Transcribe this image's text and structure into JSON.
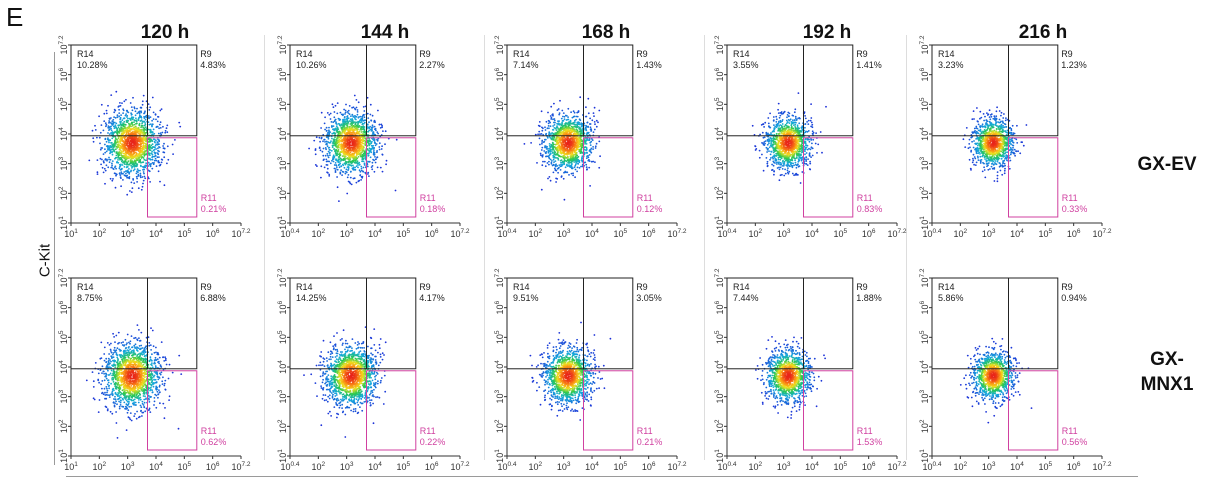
{
  "panel_letter": "E",
  "y_axis_label": "C-Kit",
  "columns": [
    "120 h",
    "144 h",
    "168 h",
    "192 h",
    "216 h"
  ],
  "rows": [
    {
      "label_line1": "GX-EV",
      "label_line2": ""
    },
    {
      "label_line1": "GX-",
      "label_line2": "MNX1"
    }
  ],
  "colors": {
    "r14_r9_gate": "#222222",
    "r11_gate": "#d040a0",
    "axis": "#333333",
    "density_low": "#1c2fd8",
    "density_high": "#e8231a"
  },
  "chart_data": {
    "type": "scatter",
    "axis_scale": "log10",
    "x_range": [
      1,
      7.2
    ],
    "y_range": [
      1,
      7.2
    ],
    "x_ticks_first_col": [
      "10^1",
      "10^2",
      "10^3",
      "10^4",
      "10^5",
      "10^6",
      "10^7.2"
    ],
    "x_ticks_other_cols": [
      "10^0.4",
      "10^2",
      "10^3",
      "10^4",
      "10^5",
      "10^6",
      "10^7.2"
    ],
    "y_ticks": [
      "10^1",
      "10^2",
      "10^3",
      "10^4",
      "10^5",
      "10^6",
      "10^7.2"
    ],
    "panels": [
      {
        "row": "GX-EV",
        "time": "120 h",
        "R14": "10.28%",
        "R9": "4.83%",
        "R11": "0.21%"
      },
      {
        "row": "GX-EV",
        "time": "144 h",
        "R14": "10.26%",
        "R9": "2.27%",
        "R11": "0.18%"
      },
      {
        "row": "GX-EV",
        "time": "168 h",
        "R14": "7.14%",
        "R9": "1.43%",
        "R11": "0.12%"
      },
      {
        "row": "GX-EV",
        "time": "192 h",
        "R14": "3.55%",
        "R9": "1.41%",
        "R11": "0.83%"
      },
      {
        "row": "GX-EV",
        "time": "216 h",
        "R14": "3.23%",
        "R9": "1.23%",
        "R11": "0.33%"
      },
      {
        "row": "GX-MNX1",
        "time": "120 h",
        "R14": "8.75%",
        "R9": "6.88%",
        "R11": "0.62%"
      },
      {
        "row": "GX-MNX1",
        "time": "144 h",
        "R14": "14.25%",
        "R9": "4.17%",
        "R11": "0.22%"
      },
      {
        "row": "GX-MNX1",
        "time": "168 h",
        "R14": "9.51%",
        "R9": "3.05%",
        "R11": "0.21%"
      },
      {
        "row": "GX-MNX1",
        "time": "192 h",
        "R14": "7.44%",
        "R9": "1.88%",
        "R11": "1.53%"
      },
      {
        "row": "GX-MNX1",
        "time": "216 h",
        "R14": "5.86%",
        "R9": "0.94%",
        "R11": "0.56%"
      }
    ],
    "gate_names": {
      "r14": "R14",
      "r9": "R9",
      "r11": "R11"
    }
  }
}
